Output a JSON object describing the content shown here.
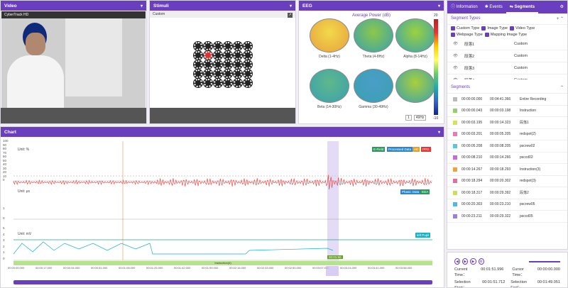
{
  "video": {
    "title": "Video",
    "label": "CyberTrack HD"
  },
  "stimuli": {
    "title": "Stimuli",
    "label": "Custom"
  },
  "eeg": {
    "title": "EEG",
    "heading": "Average Power (dB)",
    "scale_max": "20",
    "scale_min": "-10",
    "bands": [
      "Delta (1-4Hz)",
      "Theta (4-8Hz)",
      "Alpha (8-14Hz)",
      "Beta (14-30Hz)",
      "Gamma (30-49Hz)"
    ],
    "custom_from": "1",
    "custom_to": "49Hz",
    "topo_colors": [
      "#f2d94a",
      "#8cc84a",
      "#9ad23e",
      "#5fb88a",
      "#4a9ec8",
      "#a8d03c"
    ]
  },
  "tabs": [
    "Information",
    "Events",
    "Segments"
  ],
  "seg_types": {
    "title": "Segment Types",
    "items": [
      "Custom Type",
      "Image Type",
      "Video Type",
      "Webpage Type",
      "Mapping Image Type"
    ],
    "rows": [
      {
        "name": "段落1",
        "type": "Custom"
      },
      {
        "name": "段落2",
        "type": "Custom"
      },
      {
        "name": "段落3",
        "type": "Custom"
      },
      {
        "name": "段落4",
        "type": "Custom"
      }
    ]
  },
  "segments": {
    "title": "Segments",
    "rows": [
      {
        "start": "00:00:00.000",
        "end": "00:04:41.366",
        "name": "Entire Recording",
        "color": "#bbbbbb"
      },
      {
        "start": "00:00:00.043",
        "end": "00:00:03.198",
        "name": "Instruction",
        "color": "#8fd16a"
      },
      {
        "start": "00:00:03.195",
        "end": "00:00:14.323",
        "name": "段落1",
        "color": "#d4e35a"
      },
      {
        "start": "00:00:03.201",
        "end": "00:00:05.205",
        "name": "redspot(2)",
        "color": "#e87bb4"
      },
      {
        "start": "00:00:05.208",
        "end": "00:00:08.205",
        "name": "pscrew02",
        "color": "#56c8d8"
      },
      {
        "start": "00:00:08.210",
        "end": "00:00:14.266",
        "name": "psccd02",
        "color": "#c86adf"
      },
      {
        "start": "00:00:14.267",
        "end": "00:00:18.293",
        "name": "Instruction(3)",
        "color": "#f0a040"
      },
      {
        "start": "00:00:18.294",
        "end": "00:00:20.302",
        "name": "redspot(3)",
        "color": "#e06f9c"
      },
      {
        "start": "00:00:18.317",
        "end": "00:00:29.392",
        "name": "段落2",
        "color": "#c8e05a"
      },
      {
        "start": "00:00:20.303",
        "end": "00:00:23.210",
        "name": "pscrew05",
        "color": "#50b8e8"
      },
      {
        "start": "00:00:23.211",
        "end": "00:00:29.322",
        "name": "psccd05",
        "color": "#9a7ee0"
      }
    ]
  },
  "chart": {
    "title": "Chart",
    "units": [
      "Unit: %",
      "Unit: μs",
      "Unit: mV"
    ],
    "yticks1": [
      "100",
      "90",
      "80",
      "70",
      "60",
      "50",
      "40",
      "30",
      "20",
      "10",
      "0"
    ],
    "yticks2": [
      "1",
      "0"
    ],
    "yticks3": [
      "5",
      "4",
      "3",
      "2",
      "1",
      "0"
    ],
    "tags1": [
      "E-Field",
      "Processed Data",
      "AE",
      "PPG"
    ],
    "tags2": [
      "Phasic Data",
      "EDA"
    ],
    "tags3": [
      "left Pupil"
    ],
    "cursor_label": "00:01:50",
    "time_ticks": [
      "00:00:00.000",
      "00:00:17.000",
      "00:00:34.000",
      "00:00:51.000",
      "00:01:08.000",
      "00:01:25.000",
      "00:01:42.000",
      "00:01:59.000",
      "00:02:16.000",
      "00:02:33.000",
      "00:02:50.000",
      "00:03:07.000",
      "00:03:24.000",
      "00:03:41.000",
      "00:03:58.000"
    ],
    "timeline_label": "Instruction(4)"
  },
  "controls": {
    "current_label": "Current Time：",
    "current": "00:01:51.996",
    "cursor_label": "Cursor Time：",
    "cursor": "00:00:00.000",
    "sel_start_label": "Selection Start：",
    "sel_start": "00:01:51.712",
    "sel_end_label": "Selection End：",
    "sel_end": "00:01:49.051"
  }
}
